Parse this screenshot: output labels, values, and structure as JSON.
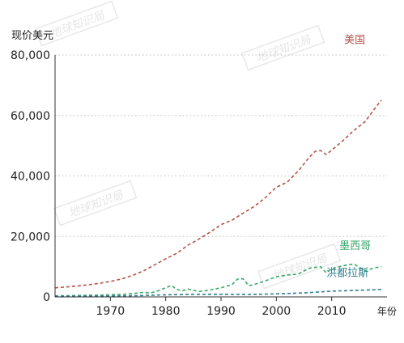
{
  "chart_data": {
    "type": "line",
    "title": "",
    "ylabel": "现价美元",
    "xlabel": "年份",
    "ylim": [
      0,
      80000
    ],
    "xlim": [
      1960,
      2020
    ],
    "y_ticks": [
      0,
      20000,
      40000,
      60000,
      80000
    ],
    "y_tick_labels": [
      "0",
      "20,000",
      "40,000",
      "60,000",
      "80,000"
    ],
    "x_ticks": [
      1970,
      1980,
      1990,
      2000,
      2010
    ],
    "x_tick_labels": [
      "1970",
      "1980",
      "1990",
      "2000",
      "2010"
    ],
    "grid": "horizontal dotted",
    "legend": "inline labels at series ends",
    "watermark": "地球知识局",
    "series": [
      {
        "name": "美国",
        "color": "#b5534a",
        "style": "dashed",
        "x": [
          1960,
          1962,
          1964,
          1966,
          1968,
          1970,
          1972,
          1974,
          1976,
          1978,
          1980,
          1982,
          1984,
          1986,
          1988,
          1990,
          1992,
          1994,
          1996,
          1998,
          2000,
          2001,
          2002,
          2004,
          2006,
          2007,
          2008,
          2009,
          2010,
          2012,
          2014,
          2016,
          2018,
          2019
        ],
        "values": [
          3000,
          3300,
          3600,
          4000,
          4500,
          5100,
          5900,
          7100,
          8600,
          10600,
          12600,
          14400,
          17100,
          19100,
          21400,
          23900,
          25400,
          27700,
          29900,
          32800,
          36300,
          37100,
          38000,
          41700,
          46300,
          48100,
          48400,
          47100,
          48500,
          51600,
          55000,
          57900,
          62800,
          65100
        ]
      },
      {
        "name": "墨西哥",
        "color": "#3aa86b",
        "style": "dashed",
        "x": [
          1960,
          1964,
          1968,
          1972,
          1974,
          1976,
          1977,
          1978,
          1980,
          1981,
          1982,
          1983,
          1984,
          1986,
          1987,
          1988,
          1990,
          1992,
          1993,
          1994,
          1995,
          1996,
          1998,
          2000,
          2002,
          2004,
          2006,
          2008,
          2009,
          2010,
          2012,
          2014,
          2015,
          2016,
          2018,
          2019
        ],
        "values": [
          350,
          450,
          600,
          800,
          1100,
          1500,
          1300,
          1600,
          3000,
          3800,
          2500,
          2000,
          2600,
          1800,
          2000,
          2300,
          3000,
          4100,
          5900,
          6000,
          3700,
          4100,
          5300,
          6700,
          7200,
          7600,
          9500,
          10000,
          8000,
          9300,
          10300,
          10900,
          9800,
          8700,
          9700,
          9900
        ]
      },
      {
        "name": "洪都拉斯",
        "color": "#2d7f8f",
        "style": "dashed",
        "x": [
          1960,
          1965,
          1970,
          1975,
          1980,
          1985,
          1990,
          1995,
          2000,
          2005,
          2010,
          2015,
          2019
        ],
        "values": [
          200,
          230,
          280,
          400,
          700,
          850,
          850,
          800,
          1000,
          1300,
          1900,
          2200,
          2500
        ]
      }
    ]
  }
}
